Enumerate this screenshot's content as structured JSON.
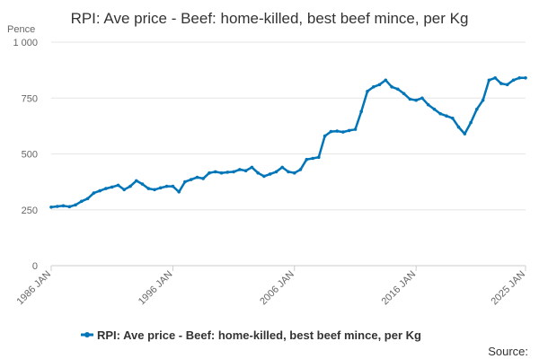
{
  "chart_data": {
    "type": "line",
    "title": "RPI: Ave price - Beef: home-killed, best beef mince, per Kg",
    "ylabel": "Pence",
    "xlabel": "",
    "ylim": [
      0,
      1000
    ],
    "yticks": [
      0,
      250,
      500,
      750,
      1000
    ],
    "ytick_labels": [
      "0",
      "250",
      "500",
      "750",
      "1 000"
    ],
    "xlim": [
      1986.0,
      2025.0
    ],
    "xticks": [
      1986,
      1996,
      2006,
      2016,
      2025
    ],
    "xtick_labels": [
      "1986 JAN",
      "1996 JAN",
      "2006 JAN",
      "2016 JAN",
      "2025 JAN"
    ],
    "legend": "RPI: Ave price - Beef: home-killed, best beef mince, per Kg",
    "source_label": "Source:",
    "colors": {
      "line": "#0075b8",
      "grid": "#e6e6e6",
      "axis": "#cccccc"
    },
    "series": [
      {
        "name": "RPI: Ave price - Beef: home-killed, best beef mince, per Kg",
        "x": [
          1986.0,
          1986.5,
          1987.0,
          1987.5,
          1988.0,
          1988.5,
          1989.0,
          1989.5,
          1990.0,
          1990.5,
          1991.0,
          1991.5,
          1992.0,
          1992.5,
          1993.0,
          1993.5,
          1994.0,
          1994.5,
          1995.0,
          1995.5,
          1996.0,
          1996.5,
          1997.0,
          1997.5,
          1998.0,
          1998.5,
          1999.0,
          1999.5,
          2000.0,
          2000.5,
          2001.0,
          2001.5,
          2002.0,
          2002.5,
          2003.0,
          2003.5,
          2004.0,
          2004.5,
          2005.0,
          2005.5,
          2006.0,
          2006.5,
          2007.0,
          2007.5,
          2008.0,
          2008.5,
          2009.0,
          2009.5,
          2010.0,
          2010.5,
          2011.0,
          2011.5,
          2012.0,
          2012.5,
          2013.0,
          2013.5,
          2014.0,
          2014.5,
          2015.0,
          2015.5,
          2016.0,
          2016.5,
          2017.0,
          2017.5,
          2018.0,
          2018.5,
          2019.0,
          2019.5,
          2020.0,
          2020.5,
          2021.0,
          2021.5,
          2022.0,
          2022.5,
          2023.0,
          2023.5,
          2024.0,
          2024.5,
          2025.0
        ],
        "values": [
          262,
          265,
          268,
          264,
          272,
          288,
          300,
          325,
          335,
          345,
          352,
          360,
          340,
          355,
          380,
          365,
          345,
          340,
          348,
          355,
          355,
          330,
          375,
          385,
          395,
          390,
          415,
          420,
          415,
          418,
          420,
          430,
          425,
          440,
          415,
          400,
          410,
          420,
          440,
          420,
          415,
          430,
          475,
          480,
          485,
          580,
          600,
          602,
          598,
          605,
          610,
          690,
          780,
          800,
          810,
          830,
          800,
          790,
          770,
          745,
          740,
          750,
          720,
          700,
          680,
          670,
          660,
          620,
          590,
          640,
          700,
          740,
          830,
          840,
          815,
          810,
          830,
          840,
          840
        ]
      }
    ]
  }
}
